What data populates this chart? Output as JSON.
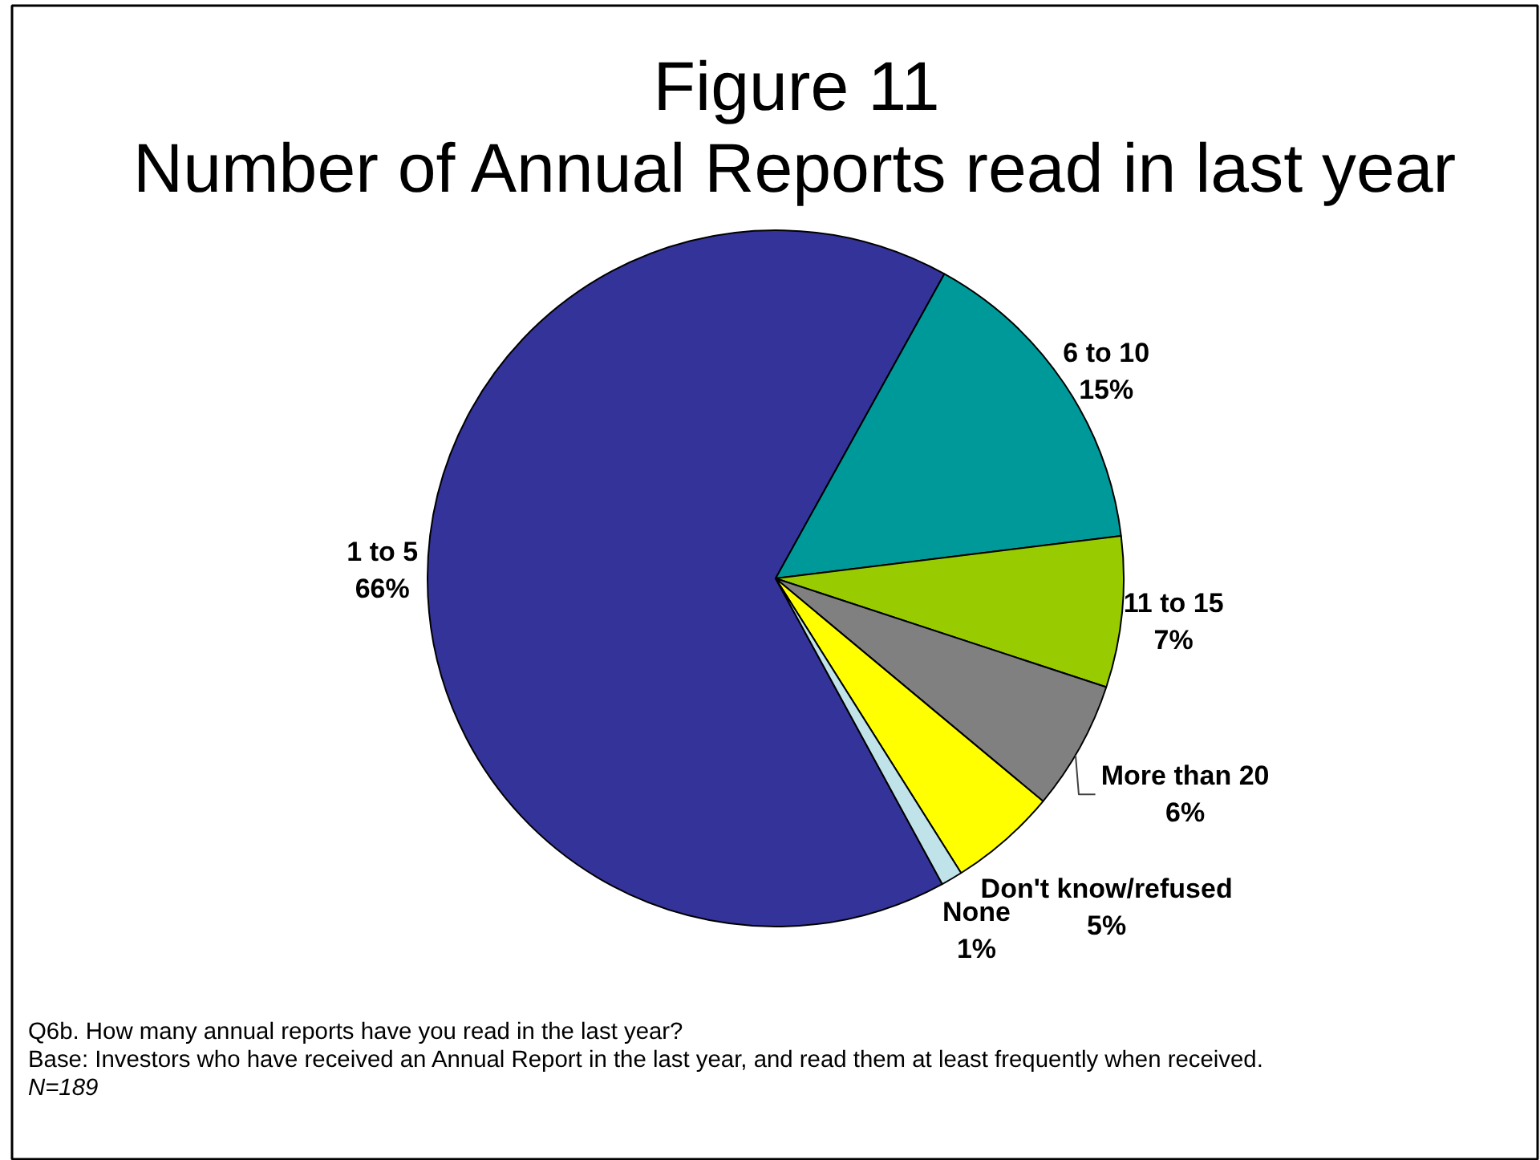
{
  "chart_data": {
    "type": "pie",
    "title": "Figure 11",
    "subtitle": "Number of Annual Reports read in last year",
    "categories": [
      "1 to 5",
      "6 to 10",
      "11 to 15",
      "More than 20",
      "Don't know/refused",
      "None"
    ],
    "values": [
      66,
      15,
      7,
      6,
      5,
      1
    ],
    "value_labels": [
      "66%",
      "15%",
      "7%",
      "6%",
      "5%",
      "1%"
    ],
    "colors": [
      "#333399",
      "#009999",
      "#99cc00",
      "#808080",
      "#ffff00",
      "#bfe3e8"
    ],
    "annotations": [
      "Q6b. How many annual reports have you read in the last year?",
      "Base: Investors who have received an Annual Report in the last year, and read them at least frequently when received.",
      "N=189"
    ]
  }
}
